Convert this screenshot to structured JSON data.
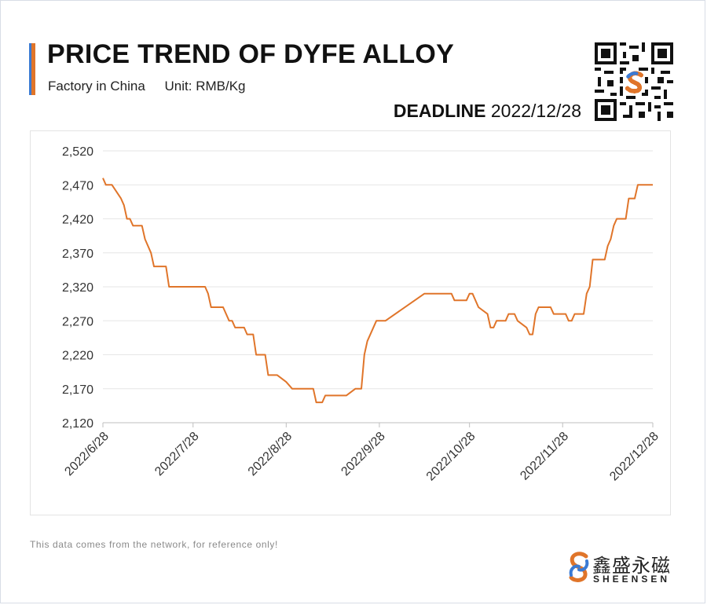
{
  "header": {
    "title": "PRICE TREND OF DYFE ALLOY",
    "subtitle_location": "Factory in China",
    "subtitle_unit": "Unit: RMB/Kg",
    "deadline_label": "DEADLINE",
    "deadline_date": "2022/12/28"
  },
  "footer": {
    "note": "This data comes from the network, for reference only!",
    "brand_cn": "鑫盛永磁",
    "brand_en": "SHEENSEN"
  },
  "colors": {
    "line": "#e0752a",
    "accent_blue": "#3b7bd4",
    "accent_orange": "#e0752a",
    "grid": "#e6e6e6"
  },
  "icons": [
    "qr-code-icon",
    "sheensen-logo-icon"
  ],
  "chart_data": {
    "type": "line",
    "title": "PRICE TREND OF DYFE ALLOY",
    "xlabel": "",
    "ylabel": "",
    "ylim": [
      2120,
      2520
    ],
    "y_ticks": [
      "2,120",
      "2,170",
      "2,220",
      "2,270",
      "2,320",
      "2,370",
      "2,420",
      "2,470",
      "2,520"
    ],
    "x_ticks": [
      "2022/6/28",
      "2022/7/28",
      "2022/8/28",
      "2022/9/28",
      "2022/10/28",
      "2022/11/28",
      "2022/12/28"
    ],
    "grid": "horizontal",
    "legend": "none",
    "series": [
      {
        "points": [
          [
            "2022-06-28",
            2480
          ],
          [
            "2022-06-29",
            2470
          ],
          [
            "2022-07-01",
            2470
          ],
          [
            "2022-07-04",
            2450
          ],
          [
            "2022-07-05",
            2440
          ],
          [
            "2022-07-06",
            2420
          ],
          [
            "2022-07-07",
            2420
          ],
          [
            "2022-07-08",
            2410
          ],
          [
            "2022-07-11",
            2410
          ],
          [
            "2022-07-12",
            2390
          ],
          [
            "2022-07-14",
            2370
          ],
          [
            "2022-07-15",
            2350
          ],
          [
            "2022-07-19",
            2350
          ],
          [
            "2022-07-20",
            2320
          ],
          [
            "2022-08-01",
            2320
          ],
          [
            "2022-08-02",
            2310
          ],
          [
            "2022-08-03",
            2290
          ],
          [
            "2022-08-07",
            2290
          ],
          [
            "2022-08-09",
            2270
          ],
          [
            "2022-08-10",
            2270
          ],
          [
            "2022-08-11",
            2260
          ],
          [
            "2022-08-14",
            2260
          ],
          [
            "2022-08-15",
            2250
          ],
          [
            "2022-08-17",
            2250
          ],
          [
            "2022-08-18",
            2220
          ],
          [
            "2022-08-21",
            2220
          ],
          [
            "2022-08-22",
            2190
          ],
          [
            "2022-08-25",
            2190
          ],
          [
            "2022-08-28",
            2180
          ],
          [
            "2022-08-30",
            2170
          ],
          [
            "2022-09-06",
            2170
          ],
          [
            "2022-09-07",
            2150
          ],
          [
            "2022-09-09",
            2150
          ],
          [
            "2022-09-10",
            2160
          ],
          [
            "2022-09-17",
            2160
          ],
          [
            "2022-09-20",
            2170
          ],
          [
            "2022-09-22",
            2170
          ],
          [
            "2022-09-23",
            2220
          ],
          [
            "2022-09-24",
            2240
          ],
          [
            "2022-09-27",
            2270
          ],
          [
            "2022-09-30",
            2270
          ],
          [
            "2022-10-13",
            2310
          ],
          [
            "2022-10-22",
            2310
          ],
          [
            "2022-10-23",
            2300
          ],
          [
            "2022-10-27",
            2300
          ],
          [
            "2022-10-28",
            2310
          ],
          [
            "2022-10-29",
            2310
          ],
          [
            "2022-10-31",
            2290
          ],
          [
            "2022-11-03",
            2280
          ],
          [
            "2022-11-04",
            2260
          ],
          [
            "2022-11-05",
            2260
          ],
          [
            "2022-11-06",
            2270
          ],
          [
            "2022-11-09",
            2270
          ],
          [
            "2022-11-10",
            2280
          ],
          [
            "2022-11-12",
            2280
          ],
          [
            "2022-11-13",
            2270
          ],
          [
            "2022-11-16",
            2260
          ],
          [
            "2022-11-17",
            2250
          ],
          [
            "2022-11-18",
            2250
          ],
          [
            "2022-11-19",
            2280
          ],
          [
            "2022-11-20",
            2290
          ],
          [
            "2022-11-24",
            2290
          ],
          [
            "2022-11-25",
            2280
          ],
          [
            "2022-11-29",
            2280
          ],
          [
            "2022-11-30",
            2270
          ],
          [
            "2022-12-01",
            2270
          ],
          [
            "2022-12-02",
            2280
          ],
          [
            "2022-12-05",
            2280
          ],
          [
            "2022-12-06",
            2310
          ],
          [
            "2022-12-07",
            2320
          ],
          [
            "2022-12-08",
            2360
          ],
          [
            "2022-12-12",
            2360
          ],
          [
            "2022-12-13",
            2380
          ],
          [
            "2022-12-14",
            2390
          ],
          [
            "2022-12-15",
            2410
          ],
          [
            "2022-12-16",
            2420
          ],
          [
            "2022-12-19",
            2420
          ],
          [
            "2022-12-20",
            2450
          ],
          [
            "2022-12-22",
            2450
          ],
          [
            "2022-12-23",
            2470
          ],
          [
            "2022-12-28",
            2470
          ]
        ]
      }
    ]
  }
}
